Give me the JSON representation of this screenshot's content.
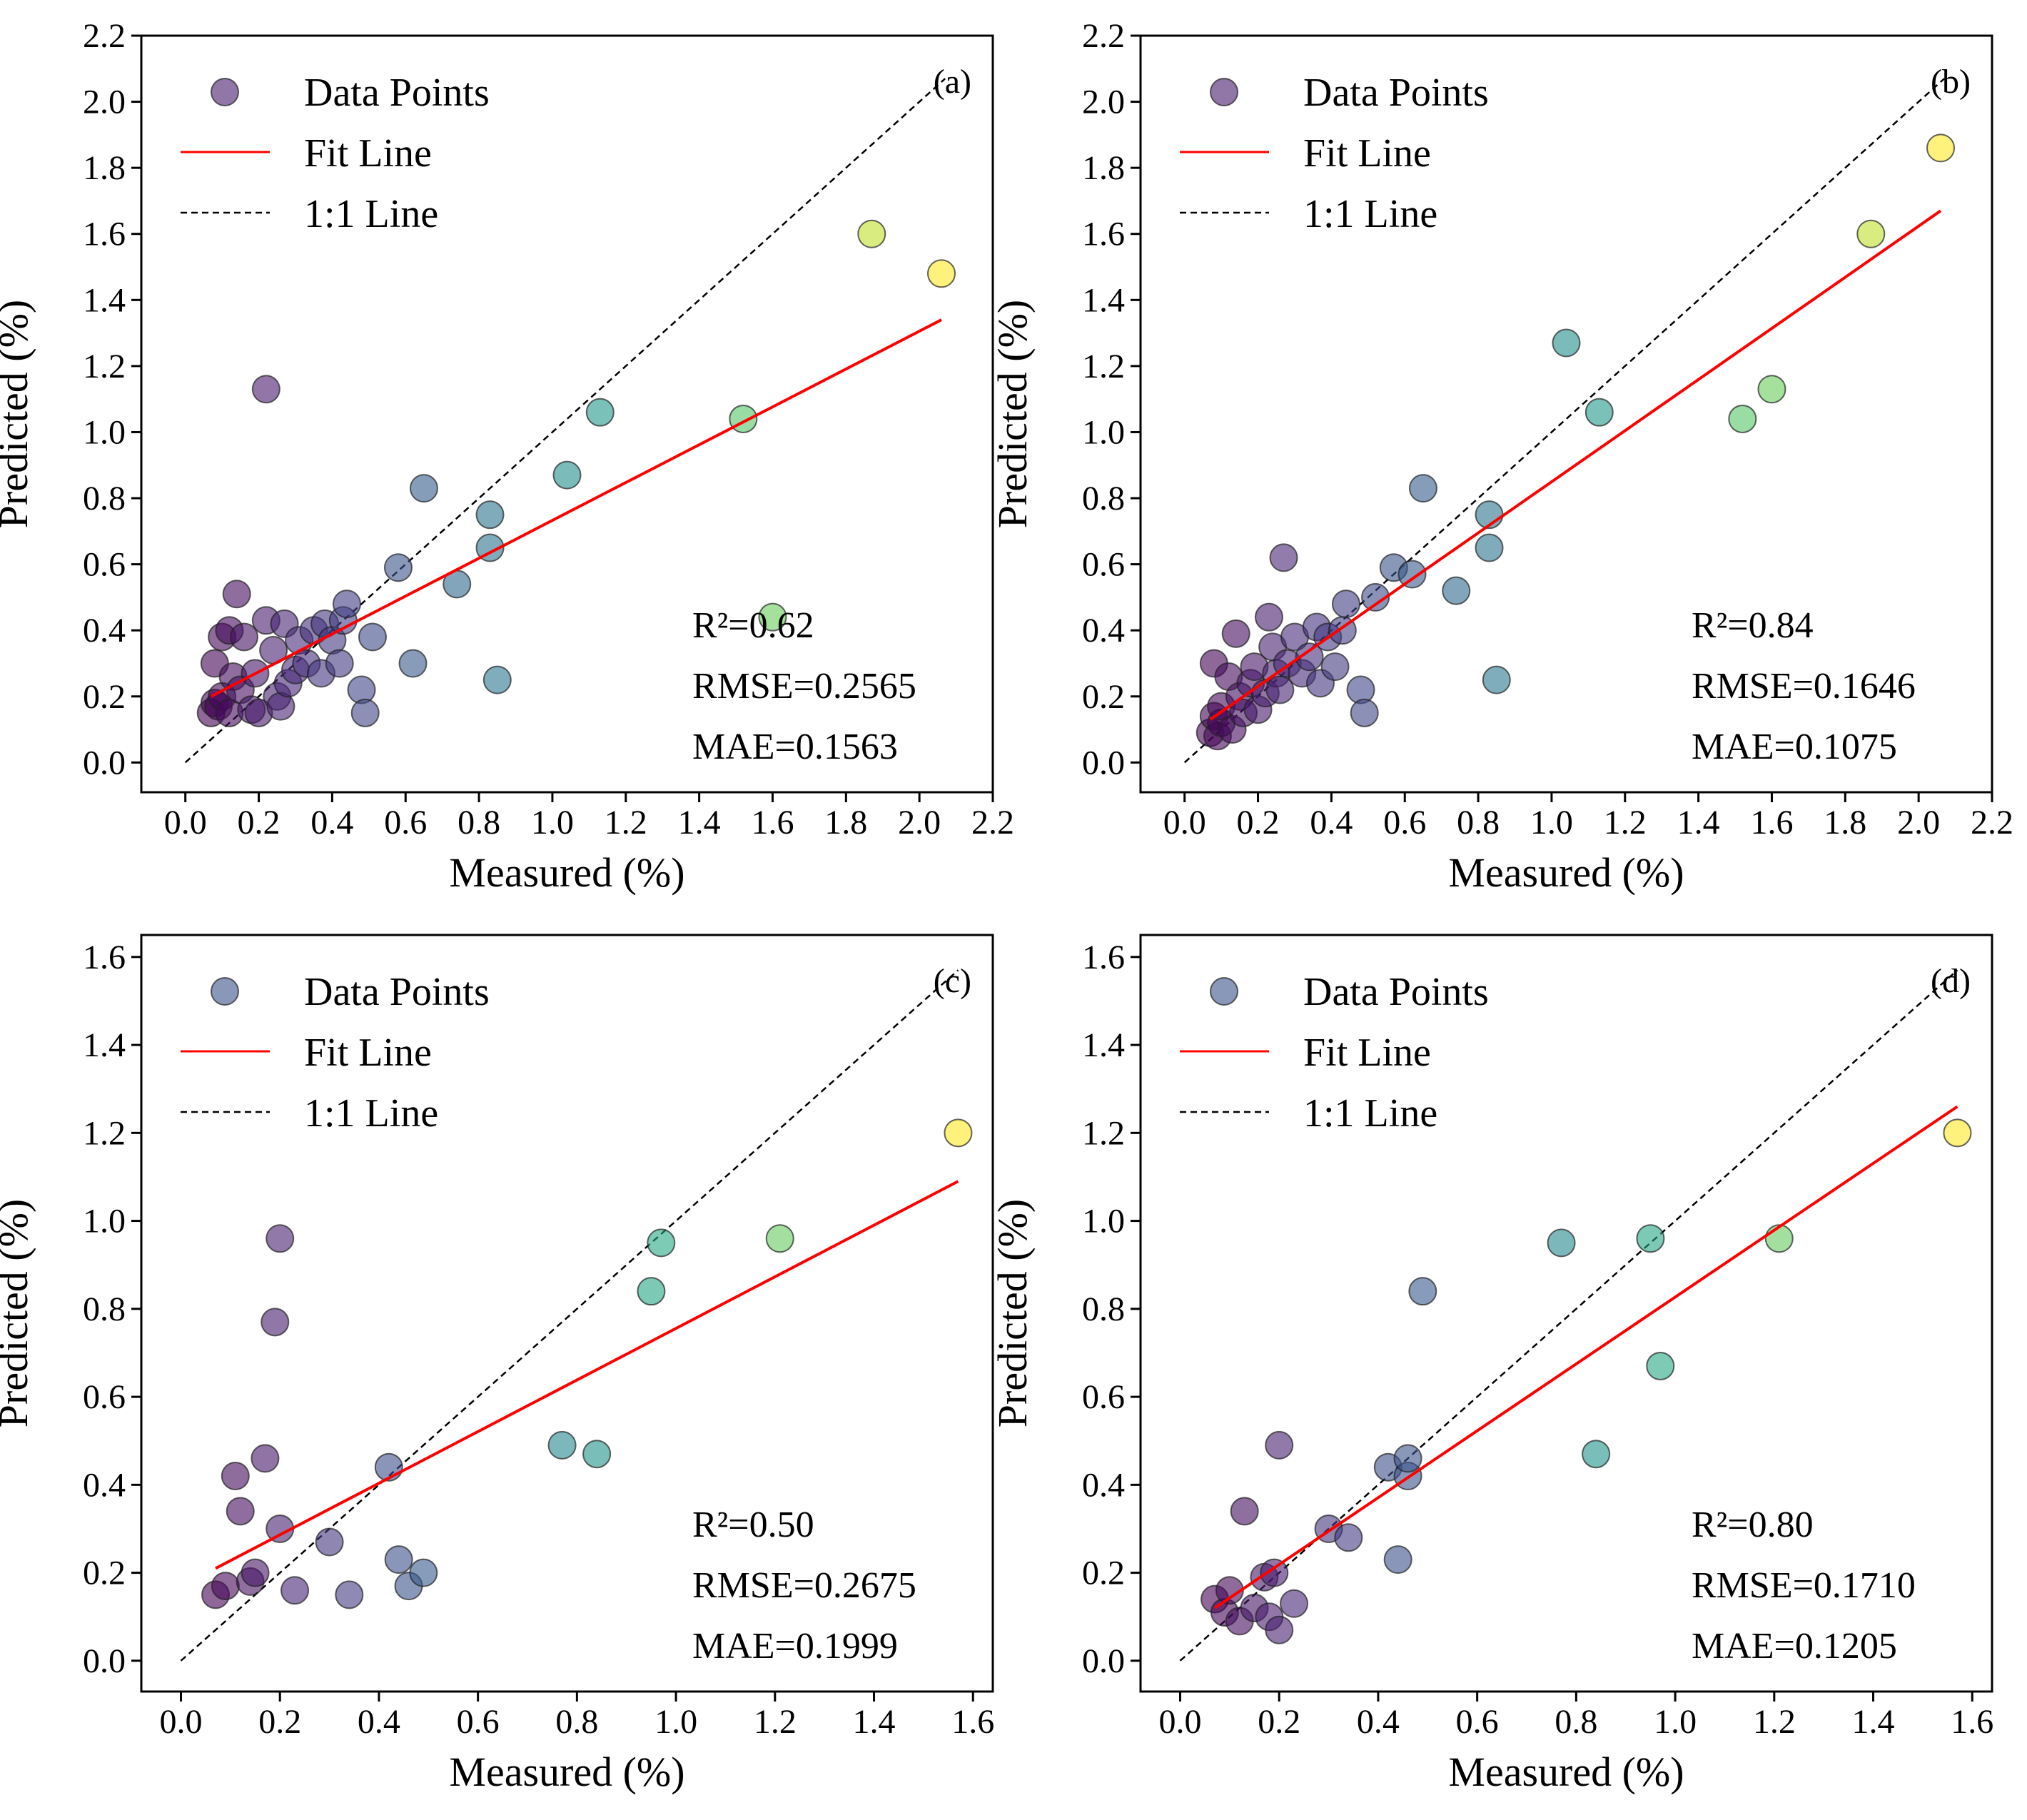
{
  "colormap": [
    "#440154",
    "#482878",
    "#3e4989",
    "#31688e",
    "#26828e",
    "#1f9e89",
    "#35b779",
    "#6ece58",
    "#b5de2b",
    "#fde725"
  ],
  "chart_data": [
    {
      "type": "scatter",
      "panel_label": "(a)",
      "xlabel": "Measured (%)",
      "ylabel": "Predicted (%)",
      "xlim": [
        -0.12,
        2.2
      ],
      "ylim": [
        -0.09,
        2.2
      ],
      "xticks": [
        "0.0",
        "0.2",
        "0.4",
        "0.6",
        "0.8",
        "1.0",
        "1.2",
        "1.4",
        "1.6",
        "1.8",
        "2.0",
        "2.2"
      ],
      "yticks": [
        "0.0",
        "0.2",
        "0.4",
        "0.6",
        "0.8",
        "1.0",
        "1.2",
        "1.4",
        "1.6",
        "1.8",
        "2.0",
        "2.2"
      ],
      "legend": {
        "points": "Data Points",
        "fit": "Fit Line",
        "identity": "1:1 Line"
      },
      "stats": {
        "r2": "R²=0.62",
        "rmse": "RMSE=0.2565",
        "mae": "MAE=0.1563"
      },
      "fit_line": {
        "x": [
          0.07,
          2.06
        ],
        "y": [
          0.2,
          1.34
        ]
      },
      "identity_line": {
        "x": [
          0.0,
          2.07
        ],
        "y": [
          0.0,
          2.07
        ]
      },
      "points": [
        {
          "x": 0.07,
          "y": 0.15
        },
        {
          "x": 0.08,
          "y": 0.18
        },
        {
          "x": 0.09,
          "y": 0.17
        },
        {
          "x": 0.1,
          "y": 0.2
        },
        {
          "x": 0.08,
          "y": 0.3
        },
        {
          "x": 0.1,
          "y": 0.38
        },
        {
          "x": 0.12,
          "y": 0.4
        },
        {
          "x": 0.12,
          "y": 0.15
        },
        {
          "x": 0.13,
          "y": 0.26
        },
        {
          "x": 0.14,
          "y": 0.51
        },
        {
          "x": 0.15,
          "y": 0.22
        },
        {
          "x": 0.16,
          "y": 0.38
        },
        {
          "x": 0.18,
          "y": 0.16
        },
        {
          "x": 0.19,
          "y": 0.27
        },
        {
          "x": 0.2,
          "y": 0.15
        },
        {
          "x": 0.22,
          "y": 0.43
        },
        {
          "x": 0.22,
          "y": 1.13
        },
        {
          "x": 0.24,
          "y": 0.34
        },
        {
          "x": 0.25,
          "y": 0.2
        },
        {
          "x": 0.26,
          "y": 0.17
        },
        {
          "x": 0.27,
          "y": 0.42
        },
        {
          "x": 0.28,
          "y": 0.24
        },
        {
          "x": 0.3,
          "y": 0.28
        },
        {
          "x": 0.31,
          "y": 0.37
        },
        {
          "x": 0.33,
          "y": 0.3
        },
        {
          "x": 0.35,
          "y": 0.4
        },
        {
          "x": 0.37,
          "y": 0.27
        },
        {
          "x": 0.38,
          "y": 0.42
        },
        {
          "x": 0.4,
          "y": 0.37
        },
        {
          "x": 0.42,
          "y": 0.3
        },
        {
          "x": 0.43,
          "y": 0.43
        },
        {
          "x": 0.44,
          "y": 0.48
        },
        {
          "x": 0.48,
          "y": 0.22
        },
        {
          "x": 0.49,
          "y": 0.15
        },
        {
          "x": 0.51,
          "y": 0.38
        },
        {
          "x": 0.58,
          "y": 0.59
        },
        {
          "x": 0.62,
          "y": 0.3
        },
        {
          "x": 0.65,
          "y": 0.83
        },
        {
          "x": 0.74,
          "y": 0.54
        },
        {
          "x": 0.83,
          "y": 0.75
        },
        {
          "x": 0.83,
          "y": 0.65
        },
        {
          "x": 0.85,
          "y": 0.25
        },
        {
          "x": 1.04,
          "y": 0.87
        },
        {
          "x": 1.13,
          "y": 1.06
        },
        {
          "x": 1.52,
          "y": 1.04
        },
        {
          "x": 1.6,
          "y": 0.44
        },
        {
          "x": 1.87,
          "y": 1.6
        },
        {
          "x": 2.06,
          "y": 1.48
        }
      ]
    },
    {
      "type": "scatter",
      "panel_label": "(b)",
      "xlabel": "Measured (%)",
      "ylabel": "Predicted (%)",
      "xlim": [
        -0.12,
        2.2
      ],
      "ylim": [
        -0.09,
        2.2
      ],
      "xticks": [
        "0.0",
        "0.2",
        "0.4",
        "0.6",
        "0.8",
        "1.0",
        "1.2",
        "1.4",
        "1.6",
        "1.8",
        "2.0",
        "2.2"
      ],
      "yticks": [
        "0.0",
        "0.2",
        "0.4",
        "0.6",
        "0.8",
        "1.0",
        "1.2",
        "1.4",
        "1.6",
        "1.8",
        "2.0",
        "2.2"
      ],
      "legend": {
        "points": "Data Points",
        "fit": "Fit Line",
        "identity": "1:1 Line"
      },
      "stats": {
        "r2": "R²=0.84",
        "rmse": "RMSE=0.1646",
        "mae": "MAE=0.1075"
      },
      "fit_line": {
        "x": [
          0.07,
          2.06
        ],
        "y": [
          0.13,
          1.67
        ]
      },
      "identity_line": {
        "x": [
          0.0,
          2.07
        ],
        "y": [
          0.0,
          2.07
        ]
      },
      "points": [
        {
          "x": 0.07,
          "y": 0.09
        },
        {
          "x": 0.08,
          "y": 0.14
        },
        {
          "x": 0.09,
          "y": 0.08
        },
        {
          "x": 0.1,
          "y": 0.12
        },
        {
          "x": 0.08,
          "y": 0.3
        },
        {
          "x": 0.1,
          "y": 0.17
        },
        {
          "x": 0.12,
          "y": 0.26
        },
        {
          "x": 0.13,
          "y": 0.1
        },
        {
          "x": 0.14,
          "y": 0.39
        },
        {
          "x": 0.15,
          "y": 0.2
        },
        {
          "x": 0.16,
          "y": 0.15
        },
        {
          "x": 0.18,
          "y": 0.24
        },
        {
          "x": 0.19,
          "y": 0.29
        },
        {
          "x": 0.2,
          "y": 0.16
        },
        {
          "x": 0.22,
          "y": 0.21
        },
        {
          "x": 0.23,
          "y": 0.44
        },
        {
          "x": 0.24,
          "y": 0.35
        },
        {
          "x": 0.25,
          "y": 0.27
        },
        {
          "x": 0.26,
          "y": 0.22
        },
        {
          "x": 0.27,
          "y": 0.62
        },
        {
          "x": 0.28,
          "y": 0.3
        },
        {
          "x": 0.3,
          "y": 0.38
        },
        {
          "x": 0.32,
          "y": 0.27
        },
        {
          "x": 0.34,
          "y": 0.32
        },
        {
          "x": 0.36,
          "y": 0.41
        },
        {
          "x": 0.37,
          "y": 0.24
        },
        {
          "x": 0.39,
          "y": 0.38
        },
        {
          "x": 0.41,
          "y": 0.29
        },
        {
          "x": 0.43,
          "y": 0.4
        },
        {
          "x": 0.44,
          "y": 0.48
        },
        {
          "x": 0.48,
          "y": 0.22
        },
        {
          "x": 0.49,
          "y": 0.15
        },
        {
          "x": 0.52,
          "y": 0.5
        },
        {
          "x": 0.57,
          "y": 0.59
        },
        {
          "x": 0.62,
          "y": 0.57
        },
        {
          "x": 0.65,
          "y": 0.83
        },
        {
          "x": 0.74,
          "y": 0.52
        },
        {
          "x": 0.83,
          "y": 0.75
        },
        {
          "x": 0.83,
          "y": 0.65
        },
        {
          "x": 0.85,
          "y": 0.25
        },
        {
          "x": 1.04,
          "y": 1.27
        },
        {
          "x": 1.13,
          "y": 1.06
        },
        {
          "x": 1.52,
          "y": 1.04
        },
        {
          "x": 1.6,
          "y": 1.13
        },
        {
          "x": 1.87,
          "y": 1.6
        },
        {
          "x": 2.06,
          "y": 1.86
        }
      ]
    },
    {
      "type": "scatter",
      "panel_label": "(c)",
      "xlabel": "Measured (%)",
      "ylabel": "Predicted (%)",
      "xlim": [
        -0.08,
        1.64
      ],
      "ylim": [
        -0.07,
        1.65
      ],
      "xticks": [
        "0.0",
        "0.2",
        "0.4",
        "0.6",
        "0.8",
        "1.0",
        "1.2",
        "1.4",
        "1.6"
      ],
      "yticks": [
        "0.0",
        "0.2",
        "0.4",
        "0.6",
        "0.8",
        "1.0",
        "1.2",
        "1.4",
        "1.6"
      ],
      "legend": {
        "points": "Data Points",
        "fit": "Fit Line",
        "identity": "1:1 Line"
      },
      "stats": {
        "r2": "R²=0.50",
        "rmse": "RMSE=0.2675",
        "mae": "MAE=0.1999"
      },
      "fit_line": {
        "x": [
          0.07,
          1.57
        ],
        "y": [
          0.21,
          1.09
        ]
      },
      "identity_line": {
        "x": [
          0.0,
          1.57
        ],
        "y": [
          0.0,
          1.57
        ]
      },
      "points": [
        {
          "x": 0.07,
          "y": 0.15
        },
        {
          "x": 0.09,
          "y": 0.17
        },
        {
          "x": 0.11,
          "y": 0.42
        },
        {
          "x": 0.12,
          "y": 0.34
        },
        {
          "x": 0.14,
          "y": 0.18
        },
        {
          "x": 0.15,
          "y": 0.2
        },
        {
          "x": 0.17,
          "y": 0.46
        },
        {
          "x": 0.19,
          "y": 0.77
        },
        {
          "x": 0.2,
          "y": 0.96
        },
        {
          "x": 0.2,
          "y": 0.3
        },
        {
          "x": 0.23,
          "y": 0.16
        },
        {
          "x": 0.3,
          "y": 0.27
        },
        {
          "x": 0.34,
          "y": 0.15
        },
        {
          "x": 0.42,
          "y": 0.44
        },
        {
          "x": 0.44,
          "y": 0.23
        },
        {
          "x": 0.46,
          "y": 0.17
        },
        {
          "x": 0.49,
          "y": 0.2
        },
        {
          "x": 0.77,
          "y": 0.49
        },
        {
          "x": 0.84,
          "y": 0.47
        },
        {
          "x": 0.95,
          "y": 0.84
        },
        {
          "x": 0.97,
          "y": 0.95
        },
        {
          "x": 1.21,
          "y": 0.96
        },
        {
          "x": 1.57,
          "y": 1.2
        }
      ]
    },
    {
      "type": "scatter",
      "panel_label": "(d)",
      "xlabel": "Measured (%)",
      "ylabel": "Predicted (%)",
      "xlim": [
        -0.08,
        1.64
      ],
      "ylim": [
        -0.07,
        1.65
      ],
      "xticks": [
        "0.0",
        "0.2",
        "0.4",
        "0.6",
        "0.8",
        "1.0",
        "1.2",
        "1.4",
        "1.6"
      ],
      "yticks": [
        "0.0",
        "0.2",
        "0.4",
        "0.6",
        "0.8",
        "1.0",
        "1.2",
        "1.4",
        "1.6"
      ],
      "legend": {
        "points": "Data Points",
        "fit": "Fit Line",
        "identity": "1:1 Line"
      },
      "stats": {
        "r2": "R²=0.80",
        "rmse": "RMSE=0.1710",
        "mae": "MAE=0.1205"
      },
      "fit_line": {
        "x": [
          0.07,
          1.57
        ],
        "y": [
          0.12,
          1.26
        ]
      },
      "identity_line": {
        "x": [
          0.0,
          1.57
        ],
        "y": [
          0.0,
          1.57
        ]
      },
      "points": [
        {
          "x": 0.07,
          "y": 0.14
        },
        {
          "x": 0.09,
          "y": 0.11
        },
        {
          "x": 0.1,
          "y": 0.16
        },
        {
          "x": 0.12,
          "y": 0.09
        },
        {
          "x": 0.13,
          "y": 0.34
        },
        {
          "x": 0.15,
          "y": 0.12
        },
        {
          "x": 0.17,
          "y": 0.19
        },
        {
          "x": 0.18,
          "y": 0.1
        },
        {
          "x": 0.19,
          "y": 0.2
        },
        {
          "x": 0.2,
          "y": 0.49
        },
        {
          "x": 0.2,
          "y": 0.07
        },
        {
          "x": 0.23,
          "y": 0.13
        },
        {
          "x": 0.3,
          "y": 0.3
        },
        {
          "x": 0.34,
          "y": 0.28
        },
        {
          "x": 0.42,
          "y": 0.44
        },
        {
          "x": 0.44,
          "y": 0.23
        },
        {
          "x": 0.46,
          "y": 0.42
        },
        {
          "x": 0.46,
          "y": 0.46
        },
        {
          "x": 0.49,
          "y": 0.84
        },
        {
          "x": 0.77,
          "y": 0.95
        },
        {
          "x": 0.84,
          "y": 0.47
        },
        {
          "x": 0.95,
          "y": 0.96
        },
        {
          "x": 0.97,
          "y": 0.67
        },
        {
          "x": 1.21,
          "y": 0.96
        },
        {
          "x": 1.57,
          "y": 1.2
        }
      ]
    }
  ]
}
